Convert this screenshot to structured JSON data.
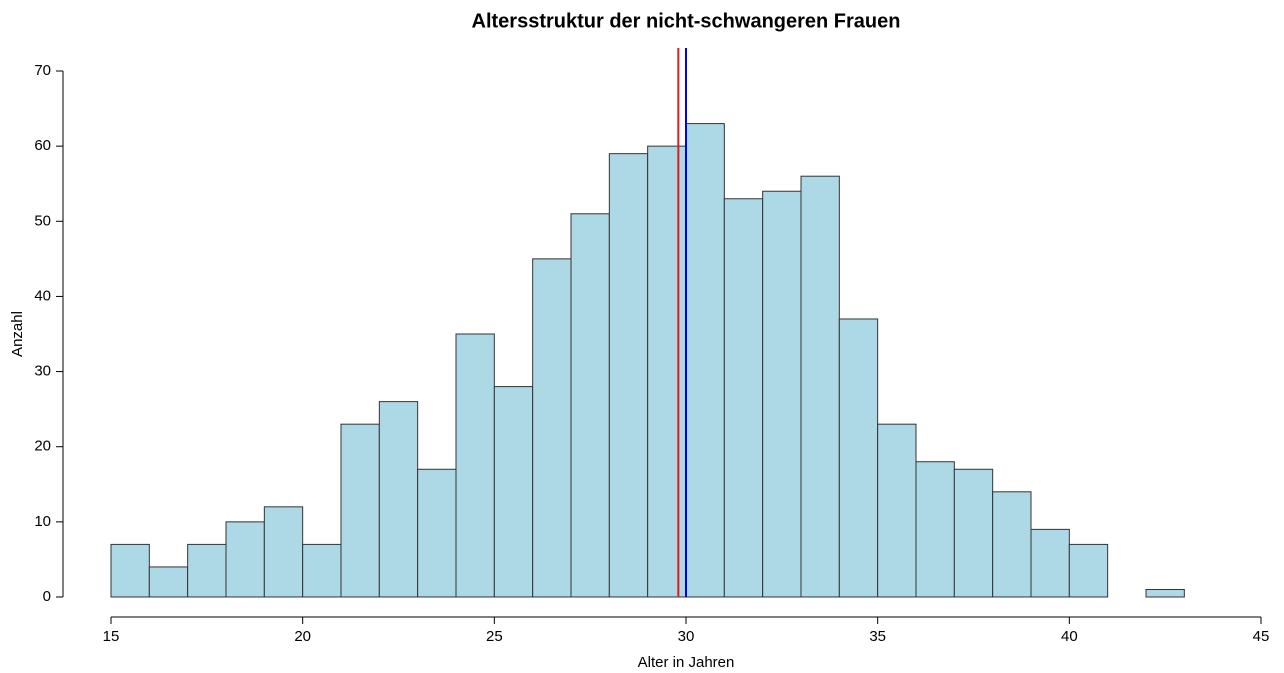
{
  "chart_data": {
    "type": "histogram",
    "title": "Altersstruktur der nicht-schwangeren Frauen",
    "xlabel": "Alter in Jahren",
    "ylabel": "Anzahl",
    "bins": [
      15,
      16,
      17,
      18,
      19,
      20,
      21,
      22,
      23,
      24,
      25,
      26,
      27,
      28,
      29,
      30,
      31,
      32,
      33,
      34,
      35,
      36,
      37,
      38,
      39,
      40,
      41,
      42,
      43
    ],
    "counts": [
      7,
      4,
      7,
      10,
      12,
      7,
      23,
      26,
      17,
      35,
      28,
      45,
      51,
      59,
      60,
      63,
      53,
      54,
      56,
      37,
      23,
      18,
      17,
      14,
      9,
      7,
      0,
      1
    ],
    "color": "#add8e6",
    "edgecolor": "#333333",
    "xlim": [
      15,
      45
    ],
    "xticks": [
      15,
      20,
      25,
      30,
      35,
      40,
      45
    ],
    "ylim": [
      0,
      70
    ],
    "yticks": [
      0,
      10,
      20,
      30,
      40,
      50,
      60,
      70
    ],
    "vlines": [
      {
        "value": 29.8,
        "color": "#e31a1c"
      },
      {
        "value": 30,
        "color": "#0000ee"
      }
    ]
  }
}
